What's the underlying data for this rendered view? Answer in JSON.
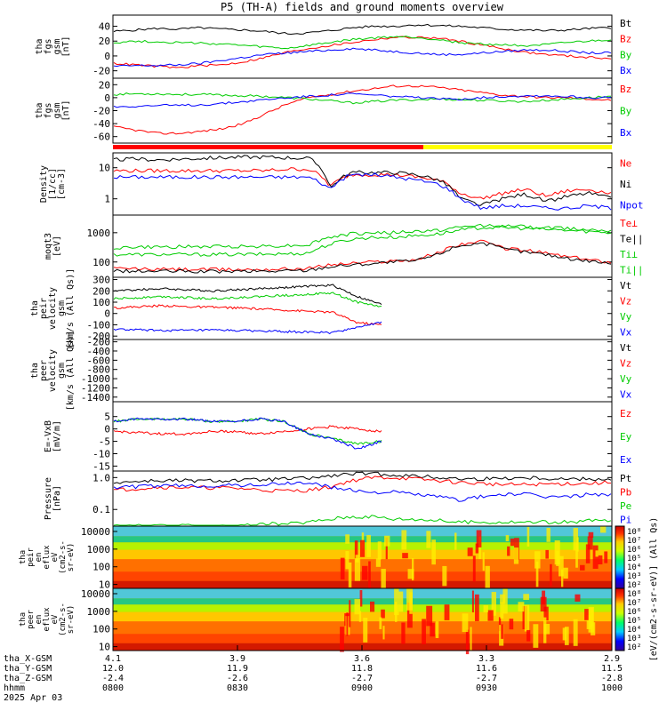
{
  "title": "P5 (TH-A) fields and ground moments overview",
  "panels": [
    {
      "id": "fgs-gsm",
      "ylabel_lines": [
        "tha",
        "fgs",
        "gsm",
        "[nT]"
      ],
      "ticks": [
        "40",
        "20",
        "0",
        "-20"
      ],
      "tick_vals": [
        40,
        20,
        0,
        -20
      ],
      "ylim": [
        -30,
        55
      ],
      "log": false,
      "legend": [
        {
          "label": "Bt",
          "color": "#000000"
        },
        {
          "label": "Bz",
          "color": "#ff0000"
        },
        {
          "label": "By",
          "color": "#00cc00"
        },
        {
          "label": "Bx",
          "color": "#0000ff"
        }
      ]
    },
    {
      "id": "fgs-gse",
      "ylabel_lines": [
        "tha",
        "fgs",
        "gsm",
        "[nT]"
      ],
      "ticks": [
        "20",
        "0",
        "-20",
        "-40",
        "-60"
      ],
      "tick_vals": [
        20,
        0,
        -20,
        -40,
        -60
      ],
      "ylim": [
        -70,
        30
      ],
      "log": false,
      "legend": [
        {
          "label": "Bz",
          "color": "#ff0000"
        },
        {
          "label": "By",
          "color": "#00cc00"
        },
        {
          "label": "Bx",
          "color": "#0000ff"
        }
      ]
    },
    {
      "id": "density",
      "ylabel_lines": [
        "Density",
        "[1/cc]",
        "[cm-3]"
      ],
      "ticks": [
        "10",
        "1"
      ],
      "tick_vals": [
        10,
        1
      ],
      "ylim": [
        0.3,
        30
      ],
      "log": true,
      "legend": [
        {
          "label": "Ne",
          "color": "#ff0000"
        },
        {
          "label": "Ni",
          "color": "#000000"
        },
        {
          "label": "Npot",
          "color": "#0000ff"
        }
      ]
    },
    {
      "id": "temperature",
      "ylabel_lines": [
        "moqt3",
        "[eV]"
      ],
      "ticks": [
        "1000",
        "100"
      ],
      "tick_vals": [
        1000,
        100
      ],
      "ylim": [
        30,
        4000
      ],
      "log": true,
      "legend": [
        {
          "label": "Te⊥",
          "color": "#ff0000"
        },
        {
          "label": "Te||",
          "color": "#000000"
        },
        {
          "label": "Ti⊥",
          "color": "#00cc00"
        },
        {
          "label": "Ti||",
          "color": "#00cc00"
        }
      ]
    },
    {
      "id": "peir-velocity",
      "ylabel_lines": [
        "tha",
        "peir",
        "velocity",
        "gsm",
        "[km/s (All Qs)]"
      ],
      "ticks": [
        "300",
        "200",
        "100",
        "0",
        "-100",
        "-200"
      ],
      "tick_vals": [
        300,
        200,
        100,
        0,
        -100,
        -200
      ],
      "ylim": [
        -230,
        320
      ],
      "log": false,
      "legend": [
        {
          "label": "Vt",
          "color": "#000000"
        },
        {
          "label": "Vz",
          "color": "#ff0000"
        },
        {
          "label": "Vy",
          "color": "#00cc00"
        },
        {
          "label": "Vx",
          "color": "#0000ff"
        }
      ]
    },
    {
      "id": "peer-velocity",
      "ylabel_lines": [
        "tha",
        "peer",
        "velocity",
        "gsm",
        "[km/s (All Qs)]"
      ],
      "ticks": [
        "-200",
        "-400",
        "-600",
        "-800",
        "-1000",
        "-1200",
        "-1400"
      ],
      "tick_vals": [
        -200,
        -400,
        -600,
        -800,
        -1000,
        -1200,
        -1400
      ],
      "ylim": [
        -1500,
        -150
      ],
      "log": false,
      "legend": [
        {
          "label": "Vt",
          "color": "#000000"
        },
        {
          "label": "Vz",
          "color": "#ff0000"
        },
        {
          "label": "Vy",
          "color": "#00cc00"
        },
        {
          "label": "Vx",
          "color": "#0000ff"
        }
      ]
    },
    {
      "id": "efield",
      "ylabel_lines": [
        "E=-VxB",
        "[mV/m]"
      ],
      "ticks": [
        "5",
        "0",
        "-5",
        "-10",
        "-15"
      ],
      "tick_vals": [
        5,
        0,
        -5,
        -10,
        -15
      ],
      "ylim": [
        -17,
        11
      ],
      "log": false,
      "legend": [
        {
          "label": "Ez",
          "color": "#ff0000"
        },
        {
          "label": "Ey",
          "color": "#00cc00"
        },
        {
          "label": "Ex",
          "color": "#0000ff"
        }
      ]
    },
    {
      "id": "pressure",
      "ylabel_lines": [
        "Pressure",
        "[nPa]"
      ],
      "ticks": [
        "1.0",
        "0.1"
      ],
      "tick_vals": [
        1.0,
        0.1
      ],
      "ylim": [
        0.03,
        1.6
      ],
      "log": true,
      "legend": [
        {
          "label": "Pt",
          "color": "#000000"
        },
        {
          "label": "Pb",
          "color": "#ff0000"
        },
        {
          "label": "Pe",
          "color": "#00cc00"
        },
        {
          "label": "Pi",
          "color": "#0000ff"
        }
      ]
    }
  ],
  "spectrograms": [
    {
      "id": "peir-spec",
      "ylabel_lines": [
        "tha",
        "peir",
        "en",
        "eflux",
        "eV",
        "(cm2-s-",
        "sr-eV)"
      ],
      "ticks": [
        "10000",
        "1000",
        "100",
        "10"
      ],
      "tick_vals": [
        10000,
        1000,
        100,
        10
      ]
    },
    {
      "id": "peer-spec",
      "ylabel_lines": [
        "tha",
        "peer",
        "en",
        "eflux",
        "eV",
        "(cm2-s-",
        "sr-eV)"
      ],
      "ticks": [
        "10000",
        "1000",
        "100",
        "10"
      ],
      "tick_vals": [
        10000,
        1000,
        100,
        10
      ]
    }
  ],
  "colorbar": {
    "ticks": [
      "10⁸",
      "10⁷",
      "10⁶",
      "10⁵",
      "10⁴",
      "10³",
      "10²"
    ],
    "label": "[eV/(cm2-s-sr-eV)] (All Qs)"
  },
  "colorbar2": {
    "ticks": [
      "10⁸",
      "10⁷",
      "10⁶",
      "10⁵",
      "10⁴",
      "10³",
      "10²"
    ]
  },
  "xaxis": {
    "rows": [
      {
        "label": "tha_X-GSM",
        "values": [
          "4.1",
          "3.9",
          "3.6",
          "3.3",
          "2.9"
        ]
      },
      {
        "label": "tha_Y-GSM",
        "values": [
          "12.0",
          "11.9",
          "11.8",
          "11.6",
          "11.5"
        ]
      },
      {
        "label": "tha_Z-GSM",
        "values": [
          "-2.4",
          "-2.6",
          "-2.7",
          "-2.7",
          "-2.8"
        ]
      },
      {
        "label": "hhmm",
        "values": [
          "0800",
          "0830",
          "0900",
          "0930",
          "1000"
        ]
      }
    ],
    "date": "2025 Apr 03"
  },
  "chart_data": [
    {
      "type": "line",
      "id": "fgs-gsm",
      "series": [
        {
          "name": "Bt",
          "values": [
            33,
            35,
            37,
            36,
            38,
            36,
            35,
            33,
            30,
            31,
            34,
            38,
            40,
            40,
            42,
            41,
            40,
            38,
            36,
            35,
            34,
            35,
            37,
            38
          ]
        },
        {
          "name": "Bz",
          "values": [
            -10,
            -12,
            -14,
            -16,
            -13,
            -12,
            -8,
            -2,
            5,
            10,
            14,
            18,
            22,
            25,
            25,
            24,
            20,
            15,
            10,
            5,
            2,
            0,
            -2,
            -3
          ]
        },
        {
          "name": "By",
          "values": [
            18,
            20,
            19,
            18,
            17,
            16,
            14,
            12,
            10,
            14,
            18,
            22,
            24,
            26,
            25,
            22,
            18,
            16,
            15,
            14,
            15,
            18,
            20,
            22
          ]
        },
        {
          "name": "Bx",
          "values": [
            -14,
            -13,
            -13,
            -12,
            -10,
            -6,
            -2,
            2,
            4,
            6,
            8,
            10,
            8,
            6,
            4,
            2,
            2,
            4,
            6,
            8,
            8,
            6,
            4,
            4
          ]
        }
      ]
    },
    {
      "type": "line",
      "id": "fgs-gse",
      "series": [
        {
          "name": "Bz",
          "values": [
            -45,
            -50,
            -55,
            -55,
            -52,
            -48,
            -40,
            -25,
            -10,
            0,
            5,
            10,
            14,
            18,
            18,
            16,
            12,
            8,
            4,
            2,
            0,
            0,
            -2,
            -4
          ]
        },
        {
          "name": "By",
          "values": [
            5,
            6,
            6,
            5,
            5,
            4,
            3,
            2,
            0,
            -2,
            -5,
            -8,
            -6,
            -4,
            -3,
            -2,
            -3,
            -4,
            -5,
            -6,
            -4,
            -2,
            0,
            2
          ]
        },
        {
          "name": "Bx",
          "values": [
            -14,
            -13,
            -12,
            -12,
            -11,
            -9,
            -6,
            -3,
            0,
            2,
            4,
            6,
            4,
            2,
            0,
            -2,
            -2,
            0,
            2,
            3,
            3,
            2,
            0,
            0
          ]
        }
      ]
    },
    {
      "type": "line",
      "id": "density",
      "series": [
        {
          "name": "Ne",
          "values": [
            8,
            8,
            8,
            8,
            8,
            8,
            8,
            8,
            9,
            9,
            2.5,
            6,
            6,
            6,
            5,
            4,
            1.5,
            1,
            1.5,
            2,
            1.2,
            1.8,
            2,
            1.5
          ]
        },
        {
          "name": "Ni",
          "values": [
            18,
            19,
            18,
            19,
            20,
            21,
            22,
            22,
            21,
            20,
            2,
            7,
            7,
            7,
            6,
            4,
            1,
            0.6,
            1,
            1.4,
            0.8,
            1.2,
            1.5,
            1
          ]
        },
        {
          "name": "Npot",
          "values": [
            5,
            5,
            5,
            5,
            5,
            5,
            5,
            5,
            5,
            5,
            2,
            6,
            6,
            5,
            4,
            3,
            1,
            0.5,
            0.6,
            0.6,
            0.5,
            0.5,
            0.6,
            0.5
          ]
        }
      ]
    },
    {
      "type": "line",
      "id": "temperature",
      "series": [
        {
          "name": "Te⊥",
          "values": [
            60,
            58,
            56,
            56,
            55,
            55,
            55,
            56,
            58,
            60,
            80,
            90,
            100,
            110,
            120,
            200,
            400,
            500,
            300,
            250,
            200,
            150,
            120,
            100
          ]
        },
        {
          "name": "Te||",
          "values": [
            50,
            48,
            48,
            48,
            47,
            47,
            48,
            48,
            50,
            52,
            70,
            80,
            90,
            100,
            110,
            180,
            360,
            450,
            280,
            220,
            180,
            130,
            110,
            90
          ]
        },
        {
          "name": "Ti⊥",
          "values": [
            180,
            180,
            180,
            180,
            180,
            180,
            180,
            185,
            190,
            200,
            400,
            600,
            700,
            700,
            800,
            900,
            1200,
            1500,
            1500,
            1400,
            1300,
            1200,
            1100,
            1000
          ]
        },
        {
          "name": "Ti||",
          "values": [
            300,
            320,
            320,
            330,
            330,
            340,
            340,
            350,
            360,
            380,
            700,
            900,
            1000,
            1000,
            1100,
            1200,
            1500,
            1800,
            1700,
            1600,
            1500,
            1400,
            1300,
            1200
          ]
        }
      ]
    },
    {
      "type": "line",
      "id": "peir-velocity",
      "series": [
        {
          "name": "Vt",
          "values": [
            200,
            210,
            220,
            210,
            200,
            210,
            220,
            230,
            240,
            250,
            150,
            80
          ]
        },
        {
          "name": "Vz",
          "values": [
            50,
            60,
            70,
            60,
            55,
            50,
            40,
            30,
            20,
            10,
            -80,
            -100
          ]
        },
        {
          "name": "Vy",
          "values": [
            130,
            140,
            150,
            140,
            130,
            140,
            150,
            160,
            170,
            180,
            100,
            60
          ]
        },
        {
          "name": "Vx",
          "values": [
            -140,
            -145,
            -150,
            -150,
            -148,
            -150,
            -155,
            -160,
            -165,
            -170,
            -120,
            -80
          ]
        }
      ]
    },
    {
      "type": "line",
      "id": "efield",
      "series": [
        {
          "name": "Ez",
          "values": [
            -1,
            -1.5,
            -2,
            -2,
            -1,
            -1,
            -2,
            -1,
            0,
            1,
            0,
            -1
          ]
        },
        {
          "name": "Ey",
          "values": [
            3,
            4,
            4,
            4,
            3,
            3,
            4,
            3,
            -2,
            -4,
            -6,
            -5
          ]
        },
        {
          "name": "Ex",
          "values": [
            3,
            4,
            4,
            4,
            3,
            3,
            4,
            3,
            -2,
            -4,
            -8,
            -5
          ]
        }
      ]
    },
    {
      "type": "line",
      "id": "pressure",
      "series": [
        {
          "name": "Pt",
          "values": [
            0.7,
            0.75,
            0.8,
            0.8,
            0.78,
            0.8,
            0.82,
            0.85,
            0.9,
            0.95,
            1.1,
            1.3,
            1.3,
            1.2,
            1.1,
            1.0,
            0.9,
            0.9,
            0.95,
            1.0,
            0.95,
            0.9,
            0.9,
            0.9
          ]
        },
        {
          "name": "Pb",
          "values": [
            0.4,
            0.45,
            0.5,
            0.5,
            0.48,
            0.48,
            0.45,
            0.4,
            0.38,
            0.4,
            0.5,
            0.8,
            1.0,
            1.0,
            0.9,
            0.8,
            0.7,
            0.65,
            0.6,
            0.6,
            0.62,
            0.65,
            0.65,
            0.7
          ]
        },
        {
          "name": "Pe",
          "values": [
            0.03,
            0.03,
            0.03,
            0.03,
            0.03,
            0.03,
            0.03,
            0.035,
            0.035,
            0.04,
            0.05,
            0.06,
            0.06,
            0.05,
            0.05,
            0.045,
            0.04,
            0.04,
            0.04,
            0.04,
            0.04,
            0.04,
            0.045,
            0.045
          ]
        },
        {
          "name": "Pi",
          "values": [
            0.5,
            0.52,
            0.55,
            0.55,
            0.55,
            0.56,
            0.58,
            0.6,
            0.65,
            0.7,
            0.5,
            0.4,
            0.35,
            0.35,
            0.3,
            0.25,
            0.2,
            0.25,
            0.3,
            0.3,
            0.25,
            0.25,
            0.3,
            0.3
          ]
        }
      ]
    }
  ]
}
